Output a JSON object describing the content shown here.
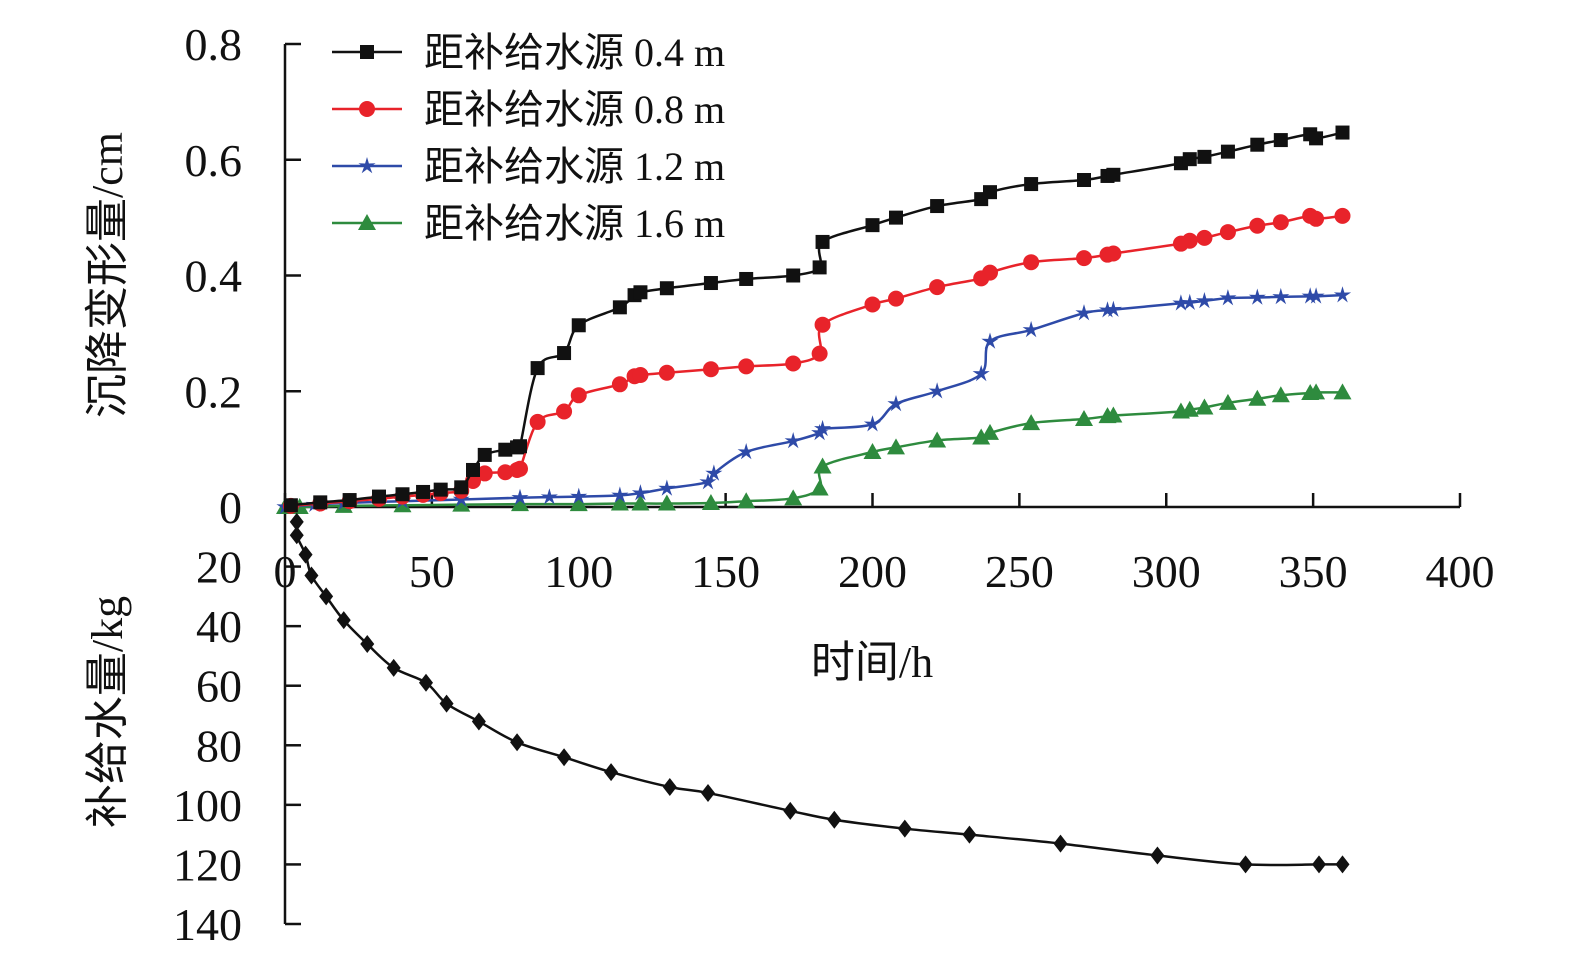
{
  "chart_data": [
    {
      "type": "line",
      "title": "",
      "xlabel": "时间/h",
      "ylabel": "沉降变形量/cm",
      "xlim": [
        0,
        400
      ],
      "ylim": [
        0,
        0.8
      ],
      "xticks": [
        "0",
        "50",
        "100",
        "150",
        "200",
        "250",
        "300",
        "350",
        "400"
      ],
      "yticks": [
        "0",
        "0.2",
        "0.4",
        "0.6",
        "0.8"
      ],
      "legend_position": "top-left",
      "series": [
        {
          "name": "距补给水源 0.4 m",
          "color": "#111111",
          "marker": "square",
          "x": [
            2,
            12,
            22,
            32,
            40,
            47,
            53,
            60,
            64,
            68,
            75,
            79,
            80,
            86,
            95,
            100,
            114,
            119,
            121,
            130,
            145,
            157,
            173,
            182,
            183,
            200,
            208,
            222,
            237,
            240,
            254,
            272,
            280,
            282,
            305,
            308,
            313,
            321,
            331,
            339,
            349,
            351,
            360
          ],
          "y": [
            0.003,
            0.008,
            0.012,
            0.018,
            0.022,
            0.026,
            0.03,
            0.034,
            0.064,
            0.09,
            0.099,
            0.103,
            0.105,
            0.24,
            0.266,
            0.314,
            0.345,
            0.366,
            0.371,
            0.378,
            0.387,
            0.394,
            0.4,
            0.414,
            0.458,
            0.487,
            0.5,
            0.52,
            0.532,
            0.544,
            0.558,
            0.565,
            0.572,
            0.574,
            0.594,
            0.601,
            0.605,
            0.614,
            0.626,
            0.634,
            0.644,
            0.637,
            0.647
          ]
        },
        {
          "name": "距补给水源 0.8 m",
          "color": "#e8232a",
          "marker": "circle",
          "x": [
            2,
            12,
            22,
            32,
            40,
            47,
            53,
            60,
            64,
            68,
            75,
            79,
            80,
            86,
            95,
            100,
            114,
            119,
            121,
            130,
            145,
            157,
            173,
            182,
            183,
            200,
            208,
            222,
            237,
            240,
            254,
            272,
            280,
            282,
            305,
            308,
            313,
            321,
            331,
            339,
            349,
            351,
            360
          ],
          "y": [
            0.002,
            0.006,
            0.01,
            0.014,
            0.018,
            0.021,
            0.024,
            0.028,
            0.045,
            0.058,
            0.06,
            0.064,
            0.066,
            0.147,
            0.165,
            0.193,
            0.212,
            0.226,
            0.228,
            0.232,
            0.238,
            0.243,
            0.248,
            0.265,
            0.315,
            0.35,
            0.36,
            0.38,
            0.395,
            0.405,
            0.423,
            0.43,
            0.436,
            0.438,
            0.455,
            0.46,
            0.465,
            0.475,
            0.486,
            0.492,
            0.503,
            0.498,
            0.503
          ]
        },
        {
          "name": "距补给水源 1.2 m",
          "color": "#2e4aa8",
          "marker": "star",
          "x": [
            0,
            10,
            20,
            40,
            60,
            80,
            90,
            100,
            114,
            121,
            130,
            144,
            146,
            157,
            173,
            182,
            183,
            200,
            208,
            222,
            237,
            240,
            254,
            272,
            280,
            282,
            305,
            308,
            313,
            321,
            331,
            339,
            349,
            351,
            360
          ],
          "y": [
            0,
            0.004,
            0.007,
            0.01,
            0.013,
            0.016,
            0.017,
            0.018,
            0.02,
            0.024,
            0.032,
            0.043,
            0.058,
            0.095,
            0.114,
            0.128,
            0.135,
            0.143,
            0.178,
            0.2,
            0.23,
            0.286,
            0.306,
            0.335,
            0.34,
            0.341,
            0.352,
            0.353,
            0.356,
            0.361,
            0.362,
            0.363,
            0.364,
            0.364,
            0.366
          ]
        },
        {
          "name": "距补给水源 1.6 m",
          "color": "#2e8b3e",
          "marker": "triangle",
          "x": [
            0,
            5,
            20,
            40,
            60,
            80,
            100,
            114,
            121,
            130,
            145,
            157,
            173,
            182,
            183,
            200,
            208,
            222,
            237,
            240,
            254,
            272,
            280,
            282,
            305,
            308,
            313,
            321,
            331,
            339,
            349,
            351,
            360
          ],
          "y": [
            0,
            0,
            0.002,
            0.003,
            0.004,
            0.005,
            0.005,
            0.006,
            0.006,
            0.006,
            0.007,
            0.01,
            0.015,
            0.032,
            0.07,
            0.095,
            0.103,
            0.115,
            0.12,
            0.128,
            0.145,
            0.152,
            0.157,
            0.158,
            0.165,
            0.168,
            0.172,
            0.18,
            0.187,
            0.193,
            0.197,
            0.198,
            0.198
          ]
        }
      ]
    },
    {
      "type": "line",
      "title": "",
      "xlabel": "时间/h",
      "ylabel": "补给水量/kg",
      "xlim": [
        0,
        400
      ],
      "ylim": [
        0,
        140
      ],
      "y_inverted": true,
      "yticks": [
        "20",
        "40",
        "60",
        "80",
        "100",
        "120",
        "140"
      ],
      "series": [
        {
          "name": "补给水量",
          "color": "#111111",
          "marker": "diamond",
          "x": [
            4,
            4,
            7,
            9,
            14,
            20,
            28,
            37,
            48,
            55,
            66,
            79,
            95,
            111,
            131,
            144,
            172,
            187,
            211,
            233,
            264,
            297,
            327,
            352,
            360
          ],
          "y": [
            5,
            9.5,
            16,
            23,
            30,
            38,
            46,
            54,
            59,
            66,
            72,
            79,
            84,
            89,
            94,
            96,
            102,
            105,
            108,
            110,
            113,
            117,
            120,
            120,
            120
          ]
        }
      ]
    }
  ]
}
